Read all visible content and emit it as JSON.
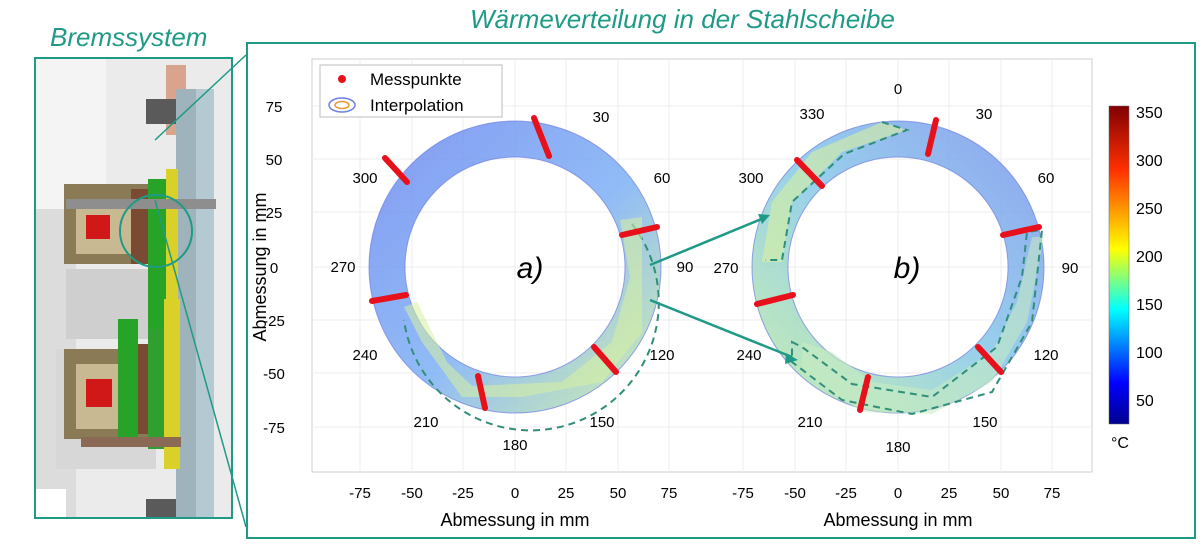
{
  "titles": {
    "left": "Bremssystem",
    "main": "Wärmeverteilung in der Stahlscheibe"
  },
  "plots": [
    {
      "label": "a)",
      "xlabel": "Abmessung in mm",
      "ylabel": "Abmessung in mm",
      "xticks": [
        "-75",
        "-50",
        "-25",
        "0",
        "25",
        "50",
        "75"
      ],
      "yticks": [
        "75",
        "50",
        "25",
        "0",
        "-25",
        "-50",
        "-75"
      ],
      "angle_labels": [
        "30",
        "60",
        "90",
        "120",
        "150",
        "180",
        "210",
        "240",
        "270",
        "300"
      ]
    },
    {
      "label": "b)",
      "xlabel": "Abmessung in mm",
      "xticks": [
        "-75",
        "-50",
        "-25",
        "0",
        "25",
        "50",
        "75"
      ],
      "angle_labels": [
        "0",
        "30",
        "60",
        "90",
        "120",
        "150",
        "180",
        "210",
        "240",
        "270",
        "300",
        "330"
      ]
    }
  ],
  "legend": {
    "items": [
      "Messpunkte",
      "Interpolation"
    ]
  },
  "colorbar": {
    "ticks": [
      "350",
      "300",
      "250",
      "200",
      "150",
      "100",
      "50"
    ],
    "unit": "°C",
    "range": [
      20,
      350
    ]
  },
  "colors": {
    "accent": "#1f9a86",
    "measure": "#e8101a"
  }
}
